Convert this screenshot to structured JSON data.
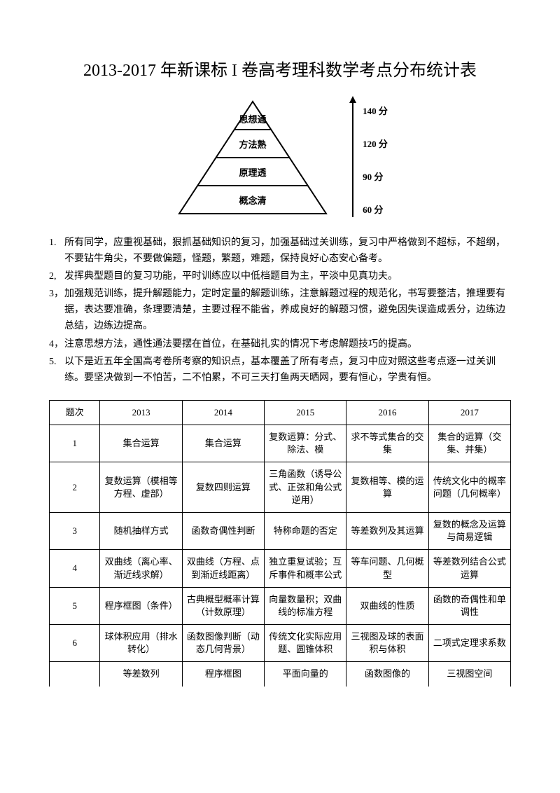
{
  "title": "2013-2017 年新课标 I 卷高考理科数学考点分布统计表",
  "pyramid": {
    "levels": [
      "思想通",
      "方法熟",
      "原理透",
      "概念清"
    ],
    "scale": [
      "140 分",
      "120 分",
      "90 分",
      "60 分"
    ],
    "stroke": "#000000",
    "fill": "#ffffff",
    "font_size": 13
  },
  "advice": [
    {
      "num": "1.",
      "text": "所有同学，应重视基础，狠抓基础知识的复习，加强基础过关训练，复习中严格做到不超标，不超纲，不要钻牛角尖，不要做偏题，怪题，繁题，难题，保持良好心态安心备考。"
    },
    {
      "num": "2,",
      "text": "发挥典型题目的复习功能，平时训练应以中低档题目为主，平淡中见真功夫。"
    },
    {
      "num": "3，",
      "text": "加强规范训练，提升解题能力，定时定量的解题训练，注意解题过程的规范化，书写要整洁，推理要有据，表达要准确，条理要清楚，主要过程不能省，养成良好的解题习惯，避免因失误造成丢分，边练边总结，边练边提高。"
    },
    {
      "num": "4，",
      "text": "注意思想方法，通性通法要摆在首位，在基础扎实的情况下考虑解题技巧的提高。"
    },
    {
      "num": "5.",
      "text": "以下是近五年全国高考卷所考察的知识点，基本覆盖了所有考点，复习中应对照这些考点逐一过关训练。要坚决做到一不怕苦，二不怕累，不可三天打鱼两天晒网，要有恒心，学贵有恒。"
    }
  ],
  "table": {
    "headers": [
      "题次",
      "2013",
      "2014",
      "2015",
      "2016",
      "2017"
    ],
    "rows": [
      [
        "1",
        "集合运算",
        "集合运算",
        "复数运算：分式、除法、模",
        "求不等式集合的交集",
        "集合的运算（交集、并集）"
      ],
      [
        "2",
        "复数运算（模相等方程、虚部）",
        "复数四则运算",
        "三角函数（诱导公式、正弦和角公式逆用）",
        "复数相等、模的运算",
        "传统文化中的概率问题（几何概率）"
      ],
      [
        "3",
        "随机抽样方式",
        "函数奇偶性判断",
        "特称命题的否定",
        "等差数列及其运算",
        "复数的概念及运算与简易逻辑"
      ],
      [
        "4",
        "双曲线（离心率、渐近线求解）",
        "双曲线（方程、点到渐近线距离）",
        "独立重复试验；互斥事件和概率公式",
        "等车问题、几何概型",
        "等差数列结合公式运算"
      ],
      [
        "5",
        "程序框图（条件）",
        "古典概型概率计算（计数原理）",
        "向量数量积；双曲线的标准方程",
        "双曲线的性质",
        "函数的奇偶性和单调性"
      ],
      [
        "6",
        "球体积应用（排水转化）",
        "函数图像判断（动态几何背景）",
        "传统文化实际应用题、圆锥体积",
        "三视图及球的表面积与体积",
        "二项式定理求系数"
      ]
    ],
    "partial_row": [
      "",
      "等差数列",
      "程序框图",
      "平面向量的",
      "函数图像的",
      "三视图空间"
    ]
  },
  "colors": {
    "text": "#000000",
    "border": "#000000",
    "background": "#ffffff"
  }
}
